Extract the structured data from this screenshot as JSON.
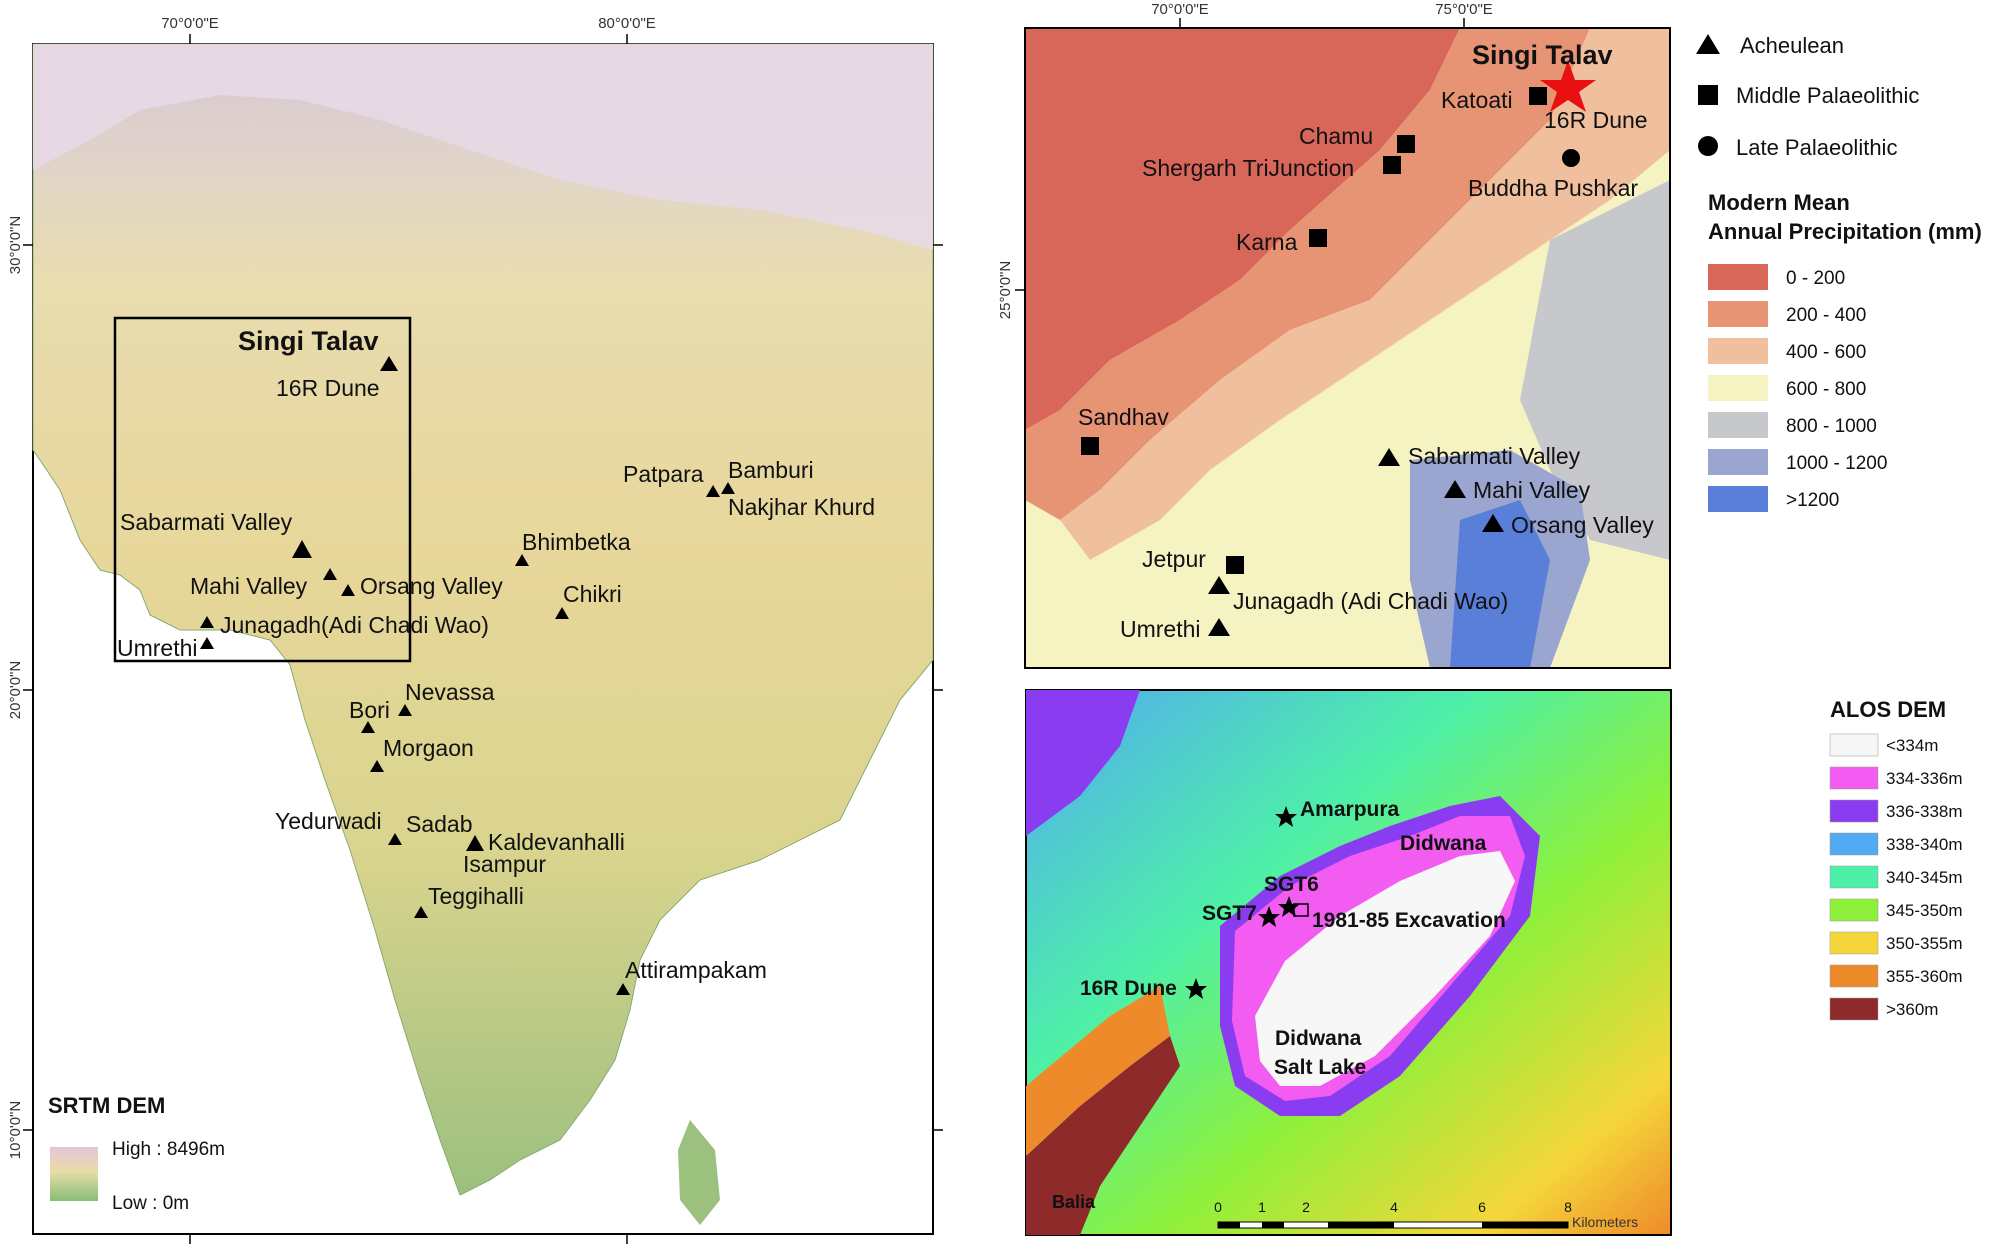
{
  "left_map": {
    "ticks_top": [
      "70°0'0\"E",
      "80°0'0\"E"
    ],
    "ticks_left": [
      "30°0'0\"N",
      "20°0'0\"N",
      "10°0'0\"N"
    ],
    "legend": {
      "title": "SRTM DEM",
      "high": "High : 8496m",
      "low": "Low : 0m"
    },
    "featured": {
      "name": "Singi Talav",
      "sub": "16R Dune"
    },
    "sites": [
      "Sabarmati Valley",
      "Mahi Valley",
      "Orsang Valley",
      "Junagadh(Adi Chadi Wao)",
      "Umrethi",
      "Patpara",
      "Bamburi",
      "Nakjhar Khurd",
      "Bhimbetka",
      "Chikri",
      "Nevassa",
      "Bori",
      "Morgaon",
      "Yedurwadi",
      "Sadab",
      "Kaldevanhalli",
      "Isampur",
      "Teggihalli",
      "Attirampakam"
    ]
  },
  "top_right_map": {
    "ticks_top": [
      "70°0'0\"E",
      "75°0'0\"E"
    ],
    "ticks_left": [
      "25°0'0\"N"
    ],
    "featured": {
      "name": "Singi Talav",
      "sub": "16R Dune"
    },
    "sites": [
      "Katoati",
      "Chamu",
      "Shergarh TriJunction",
      "Buddha Pushkar",
      "Karna",
      "Sandhav",
      "Sabarmati Valley",
      "Mahi Valley",
      "Orsang Valley",
      "Jetpur",
      "Junagadh (Adi Chadi Wao)",
      "Umrethi"
    ],
    "symbol_legend": [
      {
        "symbol": "triangle",
        "label": "Acheulean"
      },
      {
        "symbol": "square",
        "label": "Middle Palaeolithic"
      },
      {
        "symbol": "circle",
        "label": "Late Palaeolithic"
      }
    ],
    "precip_legend": {
      "title_line1": "Modern Mean",
      "title_line2": "Annual Precipitation (mm)",
      "classes": [
        {
          "label": "0 - 200",
          "color": "#d8675a"
        },
        {
          "label": "200 - 400",
          "color": "#e79475"
        },
        {
          "label": "400 - 600",
          "color": "#f0c09e"
        },
        {
          "label": "600 - 800",
          "color": "#f6f3c2"
        },
        {
          "label": "800 - 1000",
          "color": "#c6c8cc"
        },
        {
          "label": "1000 - 1200",
          "color": "#9aa6cf"
        },
        {
          "label": ">1200",
          "color": "#5a7fd8"
        }
      ]
    }
  },
  "bottom_right_map": {
    "sites": [
      "Amarpura",
      "Didwana",
      "SGT6",
      "SGT7",
      "1981-85 Excavation",
      "16R Dune"
    ],
    "lake_line1": "Didwana",
    "lake_line2": "Salt Lake",
    "corner_label": "Balia",
    "scale_numbers": [
      "0",
      "1",
      "2",
      "4",
      "6",
      "8"
    ],
    "scale_unit": "Kilometers",
    "dem_legend": {
      "title": "ALOS DEM",
      "classes": [
        {
          "label": "<334m",
          "color": "#f7f7f7"
        },
        {
          "label": "334-336m",
          "color": "#f25cf0"
        },
        {
          "label": "336-338m",
          "color": "#8a3cf0"
        },
        {
          "label": "338-340m",
          "color": "#52aaf2"
        },
        {
          "label": "340-345m",
          "color": "#4ef0a8"
        },
        {
          "label": "345-350m",
          "color": "#8ef03a"
        },
        {
          "label": "350-355m",
          "color": "#f5d63a"
        },
        {
          "label": "355-360m",
          "color": "#ee8a2a"
        },
        {
          "label": ">360m",
          "color": "#8e2a2a"
        }
      ]
    }
  }
}
